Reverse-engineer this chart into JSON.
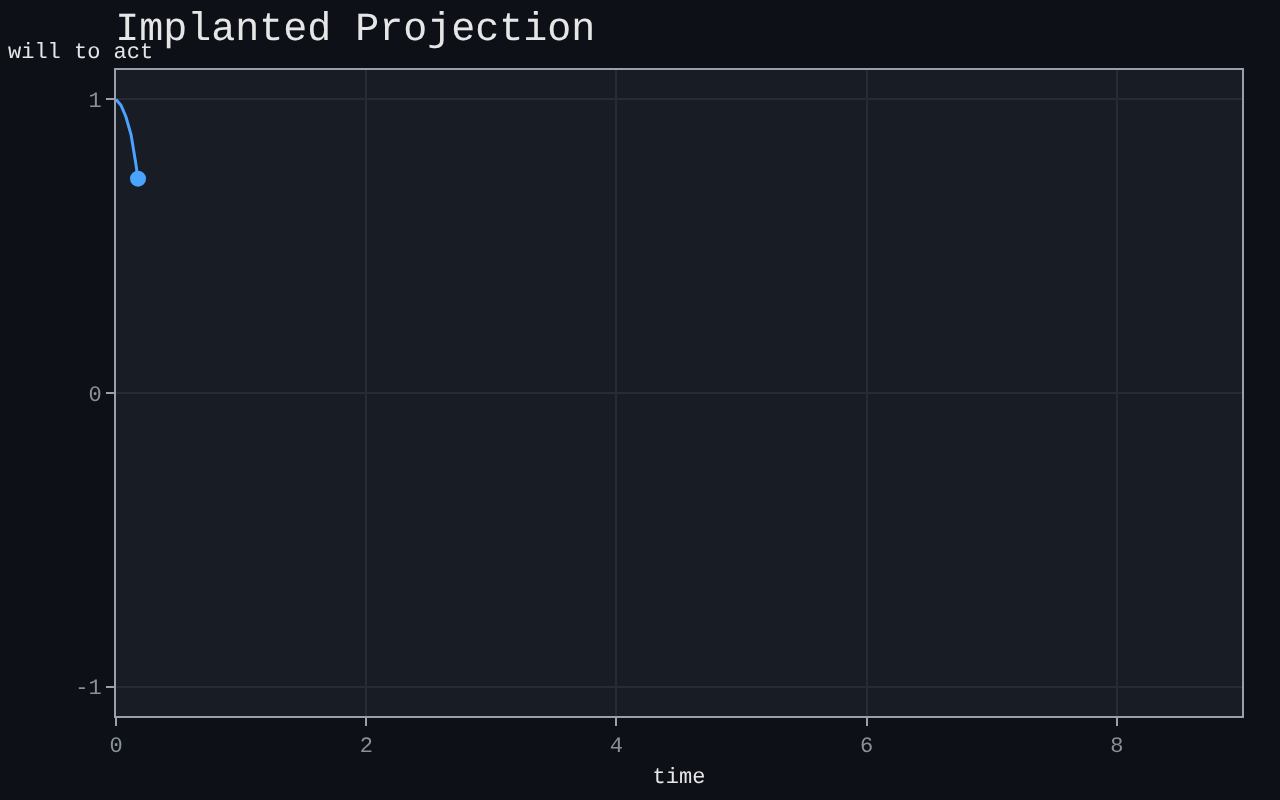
{
  "chart_data": {
    "type": "line",
    "title": "Implanted Projection",
    "xlabel": "time",
    "ylabel": "will to act",
    "x": [
      0,
      0.04,
      0.08,
      0.12,
      0.155,
      0.176
    ],
    "series": [
      {
        "color": "#4aa3ff",
        "values": [
          1,
          0.98,
          0.94,
          0.88,
          0.79,
          0.73
        ]
      },
      {
        "type": "scatter",
        "x": [
          0.176
        ],
        "color": "#4aa3ff",
        "values": [
          0.73
        ]
      }
    ],
    "xlim": [
      0,
      9
    ],
    "xticks": [
      0,
      2,
      4,
      6,
      8
    ],
    "ylim": [
      -1.1,
      1.1
    ],
    "yticks": [
      -1,
      0,
      1
    ],
    "grid": true,
    "line_style": "solid"
  }
}
